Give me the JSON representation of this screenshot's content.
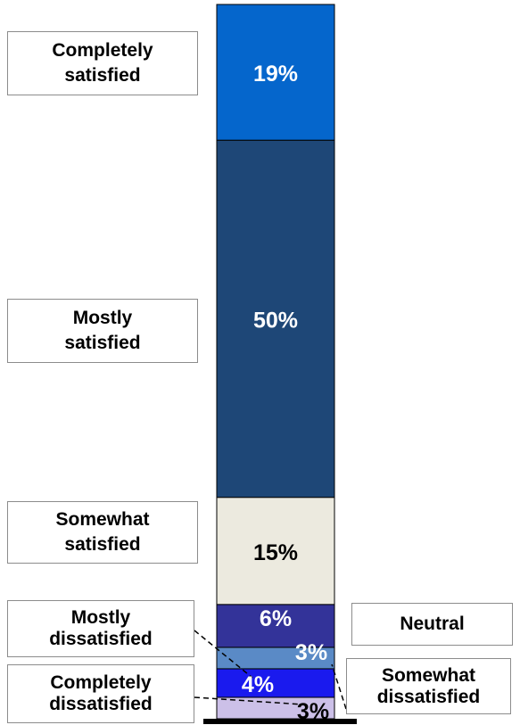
{
  "chart_data": {
    "type": "bar",
    "stacked": true,
    "unit": "%",
    "segments": [
      {
        "label": "Completely dissatisfied",
        "value": 3,
        "value_label": "3%",
        "color": "#ccc0e8",
        "text_color": "#000000"
      },
      {
        "label": "Mostly dissatisfied",
        "value": 4,
        "value_label": "4%",
        "color": "#1a1aee",
        "text_color": "#ffffff"
      },
      {
        "label": "Somewhat dissatisfied",
        "value": 3,
        "value_label": "3%",
        "color": "#5a8ac6",
        "text_color": "#ffffff"
      },
      {
        "label": "Neutral",
        "value": 6,
        "value_label": "6%",
        "color": "#333399",
        "text_color": "#ffffff"
      },
      {
        "label": "Somewhat satisfied",
        "value": 15,
        "value_label": "15%",
        "color": "#eceadf",
        "text_color": "#000000"
      },
      {
        "label": "Mostly satisfied",
        "value": 50,
        "value_label": "50%",
        "color": "#1e4777",
        "text_color": "#ffffff"
      },
      {
        "label": "Completely satisfied",
        "value": 19,
        "value_label": "19%",
        "color": "#0566cc",
        "text_color": "#ffffff"
      }
    ],
    "category_labels": {
      "completely_satisfied": "Completely\nsatisfied",
      "mostly_satisfied": "Mostly\nsatisfied",
      "somewhat_satisfied": "Somewhat\nsatisfied",
      "neutral": "Neutral",
      "mostly_dissatisfied": "Mostly\ndissatisfied",
      "somewhat_dissatisfied": "Somewhat\ndissatisfied",
      "completely_dissatisfied": "Completely\ndissatisfied"
    },
    "grid": false,
    "legend": "none"
  }
}
